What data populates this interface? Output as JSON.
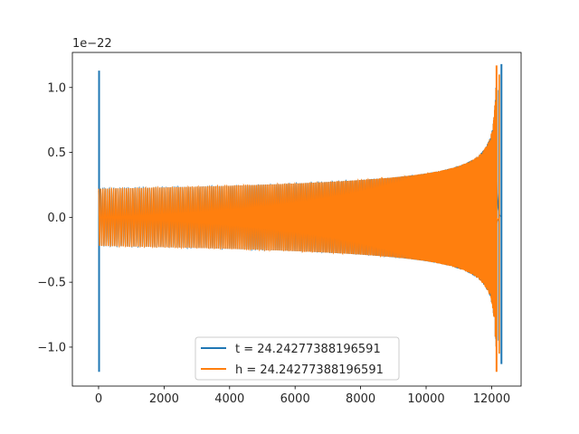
{
  "chart_data": {
    "type": "line",
    "title": "",
    "xlabel": "",
    "ylabel": "",
    "y_offset_label": "1e−22",
    "xlim": [
      -800,
      12900
    ],
    "ylim": [
      -1.3,
      1.27
    ],
    "x_ticks": [
      0,
      2000,
      4000,
      6000,
      8000,
      10000,
      12000
    ],
    "x_tick_labels": [
      "0",
      "2000",
      "4000",
      "6000",
      "8000",
      "10000",
      "12000"
    ],
    "y_ticks": [
      -1.0,
      -0.5,
      0.0,
      0.5,
      1.0
    ],
    "y_tick_labels": [
      "−1.0",
      "−0.5",
      "0.0",
      "0.5",
      "1.0"
    ],
    "grid": false,
    "legend_position": "bottom-center",
    "series": [
      {
        "name": "t = 24.24277388196591",
        "color": "#1f77b4",
        "description": "chirp waveform with sharp spikes near x=0 and x=12300",
        "x_start": 0,
        "x_end": 12300,
        "start_spike": [
          -1.19,
          1.13
        ],
        "end_spike": [
          -1.13,
          1.18
        ],
        "baseline_amplitude": 0.22,
        "merger_x": 12150
      },
      {
        "name": "h = 24.24277388196591",
        "color": "#ff7f0e",
        "description": "chirp waveform, amplitude grows toward merger",
        "x_start": 0,
        "x_end": 12240,
        "peak_positive": 1.17,
        "peak_negative": -1.19,
        "baseline_amplitude": 0.22,
        "merger_x": 12150
      }
    ]
  }
}
